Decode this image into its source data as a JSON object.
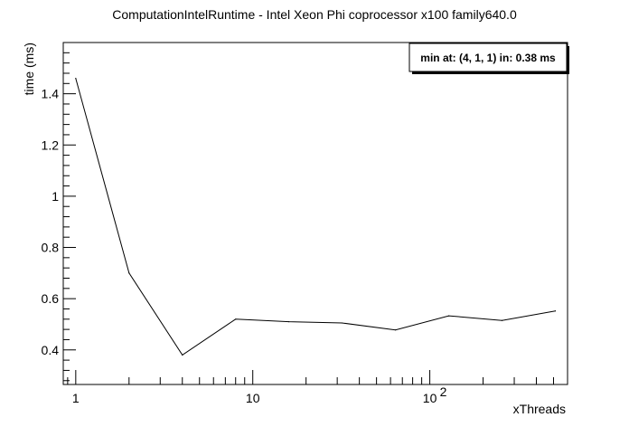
{
  "chart_data": {
    "type": "line",
    "title": "ComputationIntelRuntime - Intel Xeon Phi coprocessor x100 family640.0",
    "xlabel": "xThreads",
    "ylabel": "time (ms)",
    "x_scale": "log",
    "xlim": [
      0.85,
      600
    ],
    "ylim": [
      0.265,
      1.6
    ],
    "grid": false,
    "x_ticks": [
      {
        "value": 1,
        "label": "1"
      },
      {
        "value": 10,
        "label": "10"
      },
      {
        "value": 100,
        "label": "10",
        "exponent": "2"
      }
    ],
    "y_ticks": [
      0.4,
      0.6,
      0.8,
      1,
      1.2,
      1.4
    ],
    "series": [
      {
        "x": [
          1,
          2,
          4,
          8,
          16,
          32,
          64,
          128,
          256,
          512
        ],
        "y": [
          1.46,
          0.7,
          0.38,
          0.52,
          0.51,
          0.505,
          0.478,
          0.533,
          0.515,
          0.552
        ]
      }
    ],
    "annotation": "min at: (4, 1, 1) in: 0.38 ms",
    "annotation_position": "top-right"
  }
}
